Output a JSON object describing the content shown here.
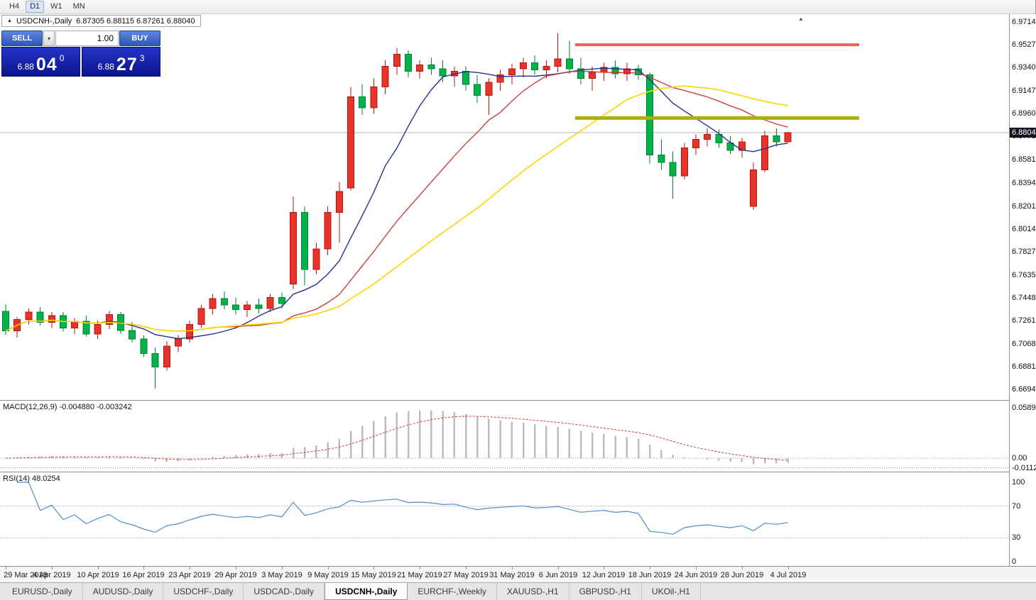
{
  "toolbar": {
    "timeframes": [
      "H4",
      "D1",
      "W1",
      "MN"
    ],
    "active": "D1"
  },
  "chart": {
    "collapse_marker": "▲",
    "symbol_label": "USDCNH-,Daily",
    "ohlc": "6.87305 6.88115 6.87261 6.88040",
    "shift_marker": "▲"
  },
  "trade_panel": {
    "sell_label": "SELL",
    "buy_label": "BUY",
    "lot": "1.00",
    "dropdown_glyph": "▾",
    "sell_price": {
      "prefix": "6.88",
      "big": "04",
      "sup": "0"
    },
    "buy_price": {
      "prefix": "6.88",
      "big": "27",
      "sup": "3"
    }
  },
  "price_axis": {
    "labels": [
      "6.97140",
      "6.95270",
      "6.93400",
      "6.91475",
      "6.89605",
      "6.87735",
      "6.85810",
      "6.83940",
      "6.82015",
      "6.80145",
      "6.78275",
      "6.76350",
      "6.74480",
      "6.72610",
      "6.70685",
      "6.68815",
      "6.66945"
    ],
    "current": "6.88040"
  },
  "chart_data": {
    "type": "candlestick",
    "title": "USDCNH-,Daily",
    "colors": {
      "bull": "#e8332a",
      "bull_stroke": "#b3170f",
      "bear": "#00b44a",
      "bear_stroke": "#008133",
      "price_line": "#b7b7b7"
    },
    "open": [
      6.7335,
      6.7175,
      6.727,
      6.733,
      6.7245,
      6.73,
      6.72,
      6.7255,
      6.715,
      6.723,
      6.731,
      6.718,
      6.711,
      6.699,
      6.688,
      6.705,
      6.711,
      6.723,
      6.736,
      6.744,
      6.739,
      6.735,
      6.739,
      6.736,
      6.745,
      6.756,
      6.815,
      6.768,
      6.785,
      6.815,
      6.835,
      6.91,
      6.901,
      6.918,
      6.935,
      6.945,
      6.931,
      6.936,
      6.933,
      6.927,
      6.931,
      6.92,
      6.911,
      6.922,
      6.928,
      6.933,
      6.938,
      6.932,
      6.935,
      6.941,
      6.933,
      6.925,
      6.93,
      6.934,
      6.929,
      6.933,
      6.928,
      6.862,
      6.856,
      6.845,
      6.868,
      6.875,
      6.879,
      6.872,
      6.866,
      6.82,
      6.85,
      6.878,
      6.87305
    ],
    "high": [
      6.7395,
      6.729,
      6.736,
      6.737,
      6.733,
      6.733,
      6.728,
      6.73,
      6.726,
      6.734,
      6.733,
      6.725,
      6.714,
      6.704,
      6.709,
      6.714,
      6.726,
      6.739,
      6.748,
      6.75,
      6.745,
      6.742,
      6.744,
      6.748,
      6.749,
      6.828,
      6.82,
      6.79,
      6.82,
      6.84,
      6.918,
      6.92,
      6.925,
      6.94,
      6.95,
      6.948,
      6.94,
      6.942,
      6.94,
      6.935,
      6.935,
      6.928,
      6.925,
      6.932,
      6.937,
      6.942,
      6.944,
      6.94,
      6.962,
      6.956,
      6.942,
      6.935,
      6.938,
      6.94,
      6.938,
      6.936,
      6.93,
      6.875,
      6.865,
      6.872,
      6.879,
      6.884,
      6.883,
      6.878,
      6.876,
      6.856,
      6.882,
      6.884,
      6.88115
    ],
    "low": [
      6.714,
      6.712,
      6.723,
      6.722,
      6.72,
      6.717,
      6.715,
      6.713,
      6.711,
      6.719,
      6.715,
      6.708,
      6.696,
      6.67,
      6.685,
      6.7,
      6.708,
      6.72,
      6.731,
      6.735,
      6.731,
      6.729,
      6.732,
      6.733,
      6.736,
      6.752,
      6.755,
      6.764,
      6.78,
      6.79,
      6.833,
      6.895,
      6.896,
      6.912,
      6.928,
      6.926,
      6.925,
      6.928,
      6.922,
      6.918,
      6.915,
      6.905,
      6.895,
      6.915,
      6.92,
      6.926,
      6.928,
      6.925,
      6.93,
      6.929,
      6.92,
      6.915,
      6.923,
      6.925,
      6.923,
      6.924,
      6.855,
      6.85,
      6.826,
      6.842,
      6.862,
      6.869,
      6.868,
      6.863,
      6.86,
      6.817,
      6.848,
      6.869,
      6.87261
    ],
    "close": [
      6.7175,
      6.727,
      6.733,
      6.7245,
      6.73,
      6.72,
      6.7255,
      6.715,
      6.723,
      6.731,
      6.718,
      6.711,
      6.699,
      6.688,
      6.705,
      6.711,
      6.723,
      6.736,
      6.744,
      6.739,
      6.735,
      6.739,
      6.736,
      6.745,
      6.74,
      6.815,
      6.768,
      6.785,
      6.815,
      6.832,
      6.91,
      6.901,
      6.918,
      6.935,
      6.945,
      6.931,
      6.936,
      6.933,
      6.927,
      6.931,
      6.92,
      6.911,
      6.922,
      6.928,
      6.933,
      6.938,
      6.932,
      6.935,
      6.941,
      6.933,
      6.925,
      6.93,
      6.934,
      6.929,
      6.933,
      6.928,
      6.862,
      6.856,
      6.845,
      6.868,
      6.875,
      6.879,
      6.872,
      6.866,
      6.873,
      6.85,
      6.878,
      6.873,
      6.8804
    ],
    "moving_averages": [
      {
        "period": 9,
        "color": "#26318f",
        "width": 1.4
      },
      {
        "period": 18,
        "color": "#d03030",
        "width": 1.3
      },
      {
        "period": 30,
        "color": "#ffd300",
        "width": 1.6
      }
    ],
    "levels": [
      {
        "type": "resistance",
        "price": 6.9527,
        "color": "#ef5f5a",
        "start_bar": 49.5,
        "end_bar": 74.2,
        "thickness": 4
      },
      {
        "type": "support",
        "price": 6.8925,
        "color": "#a9b007",
        "start_bar": 49.5,
        "end_bar": 74.2,
        "thickness": 5
      }
    ],
    "ticks": [
      {
        "bar": 0,
        "label": "29 Mar 2019"
      },
      {
        "bar": 4,
        "label": "4 Apr 2019"
      },
      {
        "bar": 8,
        "label": "10 Apr 2019"
      },
      {
        "bar": 12,
        "label": "16 Apr 2019"
      },
      {
        "bar": 16,
        "label": "23 Apr 2019"
      },
      {
        "bar": 20,
        "label": "29 Apr 2019"
      },
      {
        "bar": 24,
        "label": "3 May 2019"
      },
      {
        "bar": 28,
        "label": "9 May 2019"
      },
      {
        "bar": 32,
        "label": "15 May 2019"
      },
      {
        "bar": 36,
        "label": "21 May 2019"
      },
      {
        "bar": 40,
        "label": "27 May 2019"
      },
      {
        "bar": 44,
        "label": "31 May 2019"
      },
      {
        "bar": 48,
        "label": "6 Jun 2019"
      },
      {
        "bar": 52,
        "label": "12 Jun 2019"
      },
      {
        "bar": 56,
        "label": "18 Jun 2019"
      },
      {
        "bar": 60,
        "label": "24 Jun 2019"
      },
      {
        "bar": 64,
        "label": "28 Jun 2019"
      },
      {
        "bar": 68,
        "label": "4 Jul 2019"
      }
    ]
  },
  "macd": {
    "label": "MACD(12,26,9) -0.004880 -0.003242",
    "axis": [
      "0.058954",
      "0.00",
      "-0.011273"
    ],
    "bar_color": "#bcbcbc",
    "signal_color": "#cc4040"
  },
  "rsi": {
    "label": "RSI(14) 48.0254",
    "axis": [
      "100",
      "70",
      "30",
      "0"
    ],
    "levels": [
      70,
      30
    ],
    "line_color": "#4d8fcc"
  },
  "tabs": {
    "items": [
      "EURUSD-,Daily",
      "AUDUSD-,Daily",
      "USDCHF-,Daily",
      "USDCAD-,Daily",
      "USDCNH-,Daily",
      "EURCHF-,Weekly",
      "XAUUSD-,H1",
      "GBPUSD-,H1",
      "UKOil-,H1"
    ],
    "active_index": 4
  }
}
